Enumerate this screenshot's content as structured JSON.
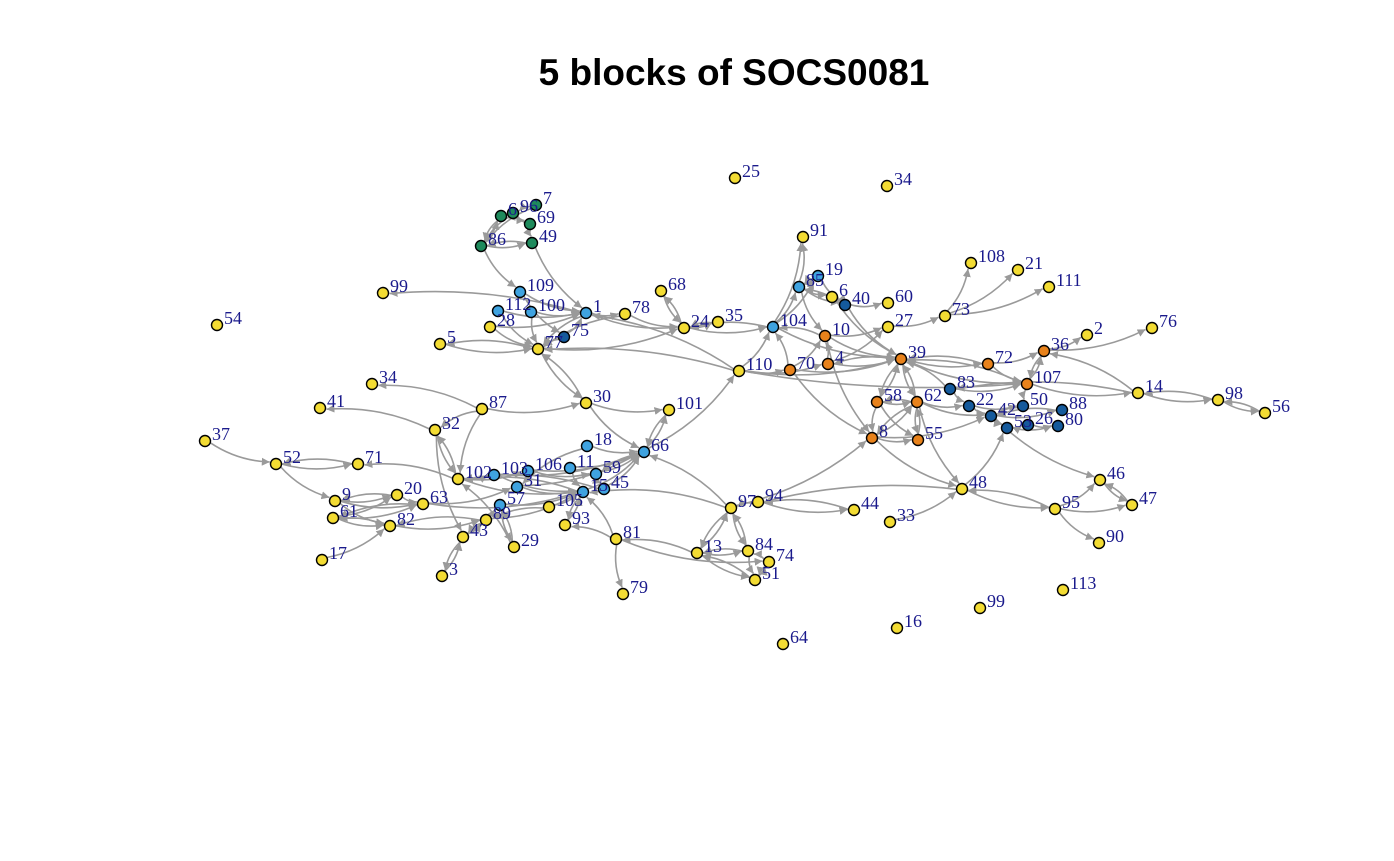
{
  "title": "5 blocks of SOCS0081",
  "colors": {
    "yellow": "#f3dc33",
    "green": "#1e8a5c",
    "lightblue": "#3fa3e0",
    "orange": "#e8821b",
    "darkblue": "#155a9c",
    "edge": "#9a9a9a",
    "label": "#1a1a8c"
  },
  "nodes": [
    {
      "id": "n25",
      "label": "25",
      "color": "yellow"
    },
    {
      "id": "n34a",
      "label": "34",
      "color": "yellow"
    },
    {
      "id": "n7",
      "label": "7",
      "color": "green"
    },
    {
      "id": "n96",
      "label": "96",
      "color": "green"
    },
    {
      "id": "n6g",
      "label": "6",
      "color": "green"
    },
    {
      "id": "n69",
      "label": "69",
      "color": "green"
    },
    {
      "id": "n86",
      "label": "86",
      "color": "green"
    },
    {
      "id": "n49",
      "label": "49",
      "color": "green"
    },
    {
      "id": "n91",
      "label": "91",
      "color": "yellow"
    },
    {
      "id": "n108",
      "label": "108",
      "color": "yellow"
    },
    {
      "id": "n21",
      "label": "21",
      "color": "yellow"
    },
    {
      "id": "n111",
      "label": "111",
      "color": "yellow"
    },
    {
      "id": "n19",
      "label": "19",
      "color": "lightblue"
    },
    {
      "id": "n85",
      "label": "85",
      "color": "lightblue"
    },
    {
      "id": "n6",
      "label": "6",
      "color": "yellow"
    },
    {
      "id": "n40",
      "label": "40",
      "color": "darkblue"
    },
    {
      "id": "n60",
      "label": "60",
      "color": "yellow"
    },
    {
      "id": "n109",
      "label": "109",
      "color": "lightblue"
    },
    {
      "id": "n99a",
      "label": "99",
      "color": "yellow"
    },
    {
      "id": "n68",
      "label": "68",
      "color": "yellow"
    },
    {
      "id": "n54",
      "label": "54",
      "color": "yellow"
    },
    {
      "id": "n112",
      "label": "112",
      "color": "lightblue"
    },
    {
      "id": "n100",
      "label": "100",
      "color": "lightblue"
    },
    {
      "id": "n1",
      "label": "1",
      "color": "lightblue"
    },
    {
      "id": "n78",
      "label": "78",
      "color": "yellow"
    },
    {
      "id": "n35",
      "label": "35",
      "color": "yellow"
    },
    {
      "id": "n24",
      "label": "24",
      "color": "yellow"
    },
    {
      "id": "n104",
      "label": "104",
      "color": "lightblue"
    },
    {
      "id": "n27",
      "label": "27",
      "color": "yellow"
    },
    {
      "id": "n73",
      "label": "73",
      "color": "yellow"
    },
    {
      "id": "n2",
      "label": "2",
      "color": "yellow"
    },
    {
      "id": "n76",
      "label": "76",
      "color": "yellow"
    },
    {
      "id": "n28",
      "label": "28",
      "color": "yellow"
    },
    {
      "id": "n75",
      "label": "75",
      "color": "darkblue"
    },
    {
      "id": "n10",
      "label": "10",
      "color": "orange"
    },
    {
      "id": "n5",
      "label": "5",
      "color": "yellow"
    },
    {
      "id": "n77",
      "label": "77",
      "color": "yellow"
    },
    {
      "id": "n4",
      "label": "4",
      "color": "orange"
    },
    {
      "id": "n39",
      "label": "39",
      "color": "orange"
    },
    {
      "id": "n36",
      "label": "36",
      "color": "orange"
    },
    {
      "id": "n72",
      "label": "72",
      "color": "orange"
    },
    {
      "id": "n70",
      "label": "70",
      "color": "orange"
    },
    {
      "id": "n110",
      "label": "110",
      "color": "yellow"
    },
    {
      "id": "n34b",
      "label": "34",
      "color": "yellow"
    },
    {
      "id": "n83",
      "label": "83",
      "color": "darkblue"
    },
    {
      "id": "n107",
      "label": "107",
      "color": "orange"
    },
    {
      "id": "n14",
      "label": "14",
      "color": "yellow"
    },
    {
      "id": "n98",
      "label": "98",
      "color": "yellow"
    },
    {
      "id": "n56",
      "label": "56",
      "color": "yellow"
    },
    {
      "id": "n87",
      "label": "87",
      "color": "yellow"
    },
    {
      "id": "n41",
      "label": "41",
      "color": "yellow"
    },
    {
      "id": "n30",
      "label": "30",
      "color": "yellow"
    },
    {
      "id": "n101",
      "label": "101",
      "color": "yellow"
    },
    {
      "id": "n58",
      "label": "58",
      "color": "orange"
    },
    {
      "id": "n62",
      "label": "62",
      "color": "orange"
    },
    {
      "id": "n22",
      "label": "22",
      "color": "darkblue"
    },
    {
      "id": "n50",
      "label": "50",
      "color": "darkblue"
    },
    {
      "id": "n88",
      "label": "88",
      "color": "darkblue"
    },
    {
      "id": "n42",
      "label": "42",
      "color": "darkblue"
    },
    {
      "id": "n53",
      "label": "53",
      "color": "darkblue"
    },
    {
      "id": "n26",
      "label": "26",
      "color": "darkblue"
    },
    {
      "id": "n80",
      "label": "80",
      "color": "darkblue"
    },
    {
      "id": "n32",
      "label": "32",
      "color": "yellow"
    },
    {
      "id": "n8",
      "label": "8",
      "color": "orange"
    },
    {
      "id": "n55",
      "label": "55",
      "color": "orange"
    },
    {
      "id": "n37",
      "label": "37",
      "color": "yellow"
    },
    {
      "id": "n18",
      "label": "18",
      "color": "lightblue"
    },
    {
      "id": "n66",
      "label": "66",
      "color": "lightblue"
    },
    {
      "id": "n52",
      "label": "52",
      "color": "yellow"
    },
    {
      "id": "n71",
      "label": "71",
      "color": "yellow"
    },
    {
      "id": "n102",
      "label": "102",
      "color": "yellow"
    },
    {
      "id": "n103",
      "label": "103",
      "color": "lightblue"
    },
    {
      "id": "n106",
      "label": "106",
      "color": "lightblue"
    },
    {
      "id": "n11",
      "label": "11",
      "color": "lightblue"
    },
    {
      "id": "n59",
      "label": "59",
      "color": "lightblue"
    },
    {
      "id": "n31",
      "label": "31",
      "color": "lightblue"
    },
    {
      "id": "n15",
      "label": "15",
      "color": "lightblue"
    },
    {
      "id": "n45",
      "label": "45",
      "color": "lightblue"
    },
    {
      "id": "n46",
      "label": "46",
      "color": "yellow"
    },
    {
      "id": "n48",
      "label": "48",
      "color": "yellow"
    },
    {
      "id": "n9",
      "label": "9",
      "color": "yellow"
    },
    {
      "id": "n20",
      "label": "20",
      "color": "yellow"
    },
    {
      "id": "n63",
      "label": "63",
      "color": "yellow"
    },
    {
      "id": "n57",
      "label": "57",
      "color": "lightblue"
    },
    {
      "id": "n105",
      "label": "105",
      "color": "yellow"
    },
    {
      "id": "n97",
      "label": "97",
      "color": "yellow"
    },
    {
      "id": "n94",
      "label": "94",
      "color": "yellow"
    },
    {
      "id": "n44",
      "label": "44",
      "color": "yellow"
    },
    {
      "id": "n95",
      "label": "95",
      "color": "yellow"
    },
    {
      "id": "n47",
      "label": "47",
      "color": "yellow"
    },
    {
      "id": "n61",
      "label": "61",
      "color": "yellow"
    },
    {
      "id": "n82",
      "label": "82",
      "color": "yellow"
    },
    {
      "id": "n89",
      "label": "89",
      "color": "yellow"
    },
    {
      "id": "n93",
      "label": "93",
      "color": "yellow"
    },
    {
      "id": "n33",
      "label": "33",
      "color": "yellow"
    },
    {
      "id": "n43",
      "label": "43",
      "color": "yellow"
    },
    {
      "id": "n81",
      "label": "81",
      "color": "yellow"
    },
    {
      "id": "n29",
      "label": "29",
      "color": "yellow"
    },
    {
      "id": "n90",
      "label": "90",
      "color": "yellow"
    },
    {
      "id": "n13",
      "label": "13",
      "color": "yellow"
    },
    {
      "id": "n84",
      "label": "84",
      "color": "yellow"
    },
    {
      "id": "n74",
      "label": "74",
      "color": "yellow"
    },
    {
      "id": "n17",
      "label": "17",
      "color": "yellow"
    },
    {
      "id": "n3",
      "label": "3",
      "color": "yellow"
    },
    {
      "id": "n51",
      "label": "51",
      "color": "yellow"
    },
    {
      "id": "n113",
      "label": "113",
      "color": "yellow"
    },
    {
      "id": "n79",
      "label": "79",
      "color": "yellow"
    },
    {
      "id": "n99b",
      "label": "99",
      "color": "yellow"
    },
    {
      "id": "n16",
      "label": "16",
      "color": "yellow"
    },
    {
      "id": "n64",
      "label": "64",
      "color": "yellow"
    }
  ],
  "edges": [
    [
      "n7",
      "n96"
    ],
    [
      "n96",
      "n69"
    ],
    [
      "n69",
      "n49"
    ],
    [
      "n86",
      "n6g"
    ],
    [
      "n6g",
      "n86"
    ],
    [
      "n49",
      "n86"
    ],
    [
      "n86",
      "n49"
    ],
    [
      "n7",
      "n86"
    ],
    [
      "n96",
      "n86"
    ],
    [
      "n69",
      "n6g"
    ],
    [
      "n86",
      "n109"
    ],
    [
      "n49",
      "n1"
    ],
    [
      "n109",
      "n1"
    ],
    [
      "n1",
      "n99a"
    ],
    [
      "n112",
      "n1"
    ],
    [
      "n100",
      "n1"
    ],
    [
      "n28",
      "n1"
    ],
    [
      "n1",
      "n78"
    ],
    [
      "n78",
      "n24"
    ],
    [
      "n24",
      "n68"
    ],
    [
      "n68",
      "n24"
    ],
    [
      "n24",
      "n35"
    ],
    [
      "n35",
      "n24"
    ],
    [
      "n1",
      "n24"
    ],
    [
      "n109",
      "n75"
    ],
    [
      "n112",
      "n77"
    ],
    [
      "n28",
      "n77"
    ],
    [
      "n100",
      "n77"
    ],
    [
      "n75",
      "n77"
    ],
    [
      "n1",
      "n77"
    ],
    [
      "n5",
      "n77"
    ],
    [
      "n77",
      "n5"
    ],
    [
      "n77",
      "n24"
    ],
    [
      "n78",
      "n77"
    ],
    [
      "n75",
      "n1"
    ],
    [
      "n104",
      "n19"
    ],
    [
      "n85",
      "n19"
    ],
    [
      "n19",
      "n85"
    ],
    [
      "n85",
      "n40"
    ],
    [
      "n40",
      "n85"
    ],
    [
      "n85",
      "n6"
    ],
    [
      "n40",
      "n60"
    ],
    [
      "n104",
      "n85"
    ],
    [
      "n104",
      "n91"
    ],
    [
      "n85",
      "n91"
    ],
    [
      "n40",
      "n6"
    ],
    [
      "n104",
      "n24"
    ],
    [
      "n24",
      "n104"
    ],
    [
      "n10",
      "n104"
    ],
    [
      "n70",
      "n104"
    ],
    [
      "n70",
      "n10"
    ],
    [
      "n10",
      "n27"
    ],
    [
      "n4",
      "n10"
    ],
    [
      "n4",
      "n27"
    ],
    [
      "n27",
      "n73"
    ],
    [
      "n73",
      "n108"
    ],
    [
      "n73",
      "n21"
    ],
    [
      "n73",
      "n111"
    ],
    [
      "n10",
      "n39"
    ],
    [
      "n4",
      "n39"
    ],
    [
      "n39",
      "n4"
    ],
    [
      "n70",
      "n39"
    ],
    [
      "n39",
      "n72"
    ],
    [
      "n72",
      "n39"
    ],
    [
      "n39",
      "n107"
    ],
    [
      "n36",
      "n107"
    ],
    [
      "n107",
      "n36"
    ],
    [
      "n72",
      "n36"
    ],
    [
      "n36",
      "n2"
    ],
    [
      "n36",
      "n76"
    ],
    [
      "n72",
      "n107"
    ],
    [
      "n107",
      "n39"
    ],
    [
      "n39",
      "n58"
    ],
    [
      "n58",
      "n39"
    ],
    [
      "n39",
      "n62"
    ],
    [
      "n62",
      "n39"
    ],
    [
      "n58",
      "n62"
    ],
    [
      "n62",
      "n58"
    ],
    [
      "n62",
      "n55"
    ],
    [
      "n55",
      "n62"
    ],
    [
      "n58",
      "n8"
    ],
    [
      "n8",
      "n62"
    ],
    [
      "n8",
      "n55"
    ],
    [
      "n62",
      "n8"
    ],
    [
      "n58",
      "n55"
    ],
    [
      "n83",
      "n107"
    ],
    [
      "n83",
      "n22"
    ],
    [
      "n22",
      "n42"
    ],
    [
      "n42",
      "n53"
    ],
    [
      "n53",
      "n26"
    ],
    [
      "n26",
      "n80"
    ],
    [
      "n50",
      "n42"
    ],
    [
      "n88",
      "n42"
    ],
    [
      "n42",
      "n88"
    ],
    [
      "n22",
      "n50"
    ],
    [
      "n53",
      "n80"
    ],
    [
      "n83",
      "n39"
    ],
    [
      "n62",
      "n22"
    ],
    [
      "n8",
      "n42"
    ],
    [
      "n107",
      "n50"
    ],
    [
      "n62",
      "n42"
    ],
    [
      "n107",
      "n14"
    ],
    [
      "n14",
      "n98"
    ],
    [
      "n98",
      "n14"
    ],
    [
      "n98",
      "n56"
    ],
    [
      "n56",
      "n98"
    ],
    [
      "n14",
      "n83"
    ],
    [
      "n14",
      "n36"
    ],
    [
      "n110",
      "n77"
    ],
    [
      "n110",
      "n39"
    ],
    [
      "n110",
      "n1"
    ],
    [
      "n110",
      "n4"
    ],
    [
      "n110",
      "n70"
    ],
    [
      "n110",
      "n104"
    ],
    [
      "n110",
      "n107"
    ],
    [
      "n70",
      "n8"
    ],
    [
      "n10",
      "n8"
    ],
    [
      "n40",
      "n39"
    ],
    [
      "n6",
      "n39"
    ],
    [
      "n104",
      "n39"
    ],
    [
      "n85",
      "n10"
    ],
    [
      "n19",
      "n40"
    ],
    [
      "n87",
      "n34b"
    ],
    [
      "n87",
      "n30"
    ],
    [
      "n32",
      "n41"
    ],
    [
      "n87",
      "n32"
    ],
    [
      "n87",
      "n102"
    ],
    [
      "n30",
      "n101"
    ],
    [
      "n30",
      "n66"
    ],
    [
      "n101",
      "n66"
    ],
    [
      "n66",
      "n101"
    ],
    [
      "n77",
      "n30"
    ],
    [
      "n30",
      "n77"
    ],
    [
      "n66",
      "n110"
    ],
    [
      "n18",
      "n66"
    ],
    [
      "n11",
      "n66"
    ],
    [
      "n59",
      "n66"
    ],
    [
      "n15",
      "n66"
    ],
    [
      "n45",
      "n66"
    ],
    [
      "n103",
      "n66"
    ],
    [
      "n106",
      "n66"
    ],
    [
      "n31",
      "n66"
    ],
    [
      "n66",
      "n59"
    ],
    [
      "n18",
      "n31"
    ],
    [
      "n37",
      "n52"
    ],
    [
      "n52",
      "n71"
    ],
    [
      "n71",
      "n52"
    ],
    [
      "n52",
      "n9"
    ],
    [
      "n102",
      "n71"
    ],
    [
      "n102",
      "n106"
    ],
    [
      "n102",
      "n15"
    ],
    [
      "n103",
      "n15"
    ],
    [
      "n106",
      "n59"
    ],
    [
      "n11",
      "n15"
    ],
    [
      "n59",
      "n45"
    ],
    [
      "n31",
      "n15"
    ],
    [
      "n57",
      "n15"
    ],
    [
      "n105",
      "n15"
    ],
    [
      "n89",
      "n15"
    ],
    [
      "n102",
      "n103"
    ],
    [
      "n15",
      "n102"
    ],
    [
      "n45",
      "n102"
    ],
    [
      "n9",
      "n20"
    ],
    [
      "n20",
      "n9"
    ],
    [
      "n9",
      "n63"
    ],
    [
      "n61",
      "n63"
    ],
    [
      "n63",
      "n61"
    ],
    [
      "n61",
      "n82"
    ],
    [
      "n82",
      "n61"
    ],
    [
      "n82",
      "n89"
    ],
    [
      "n89",
      "n82"
    ],
    [
      "n20",
      "n63"
    ],
    [
      "n63",
      "n15"
    ],
    [
      "n61",
      "n20"
    ],
    [
      "n17",
      "n82"
    ],
    [
      "n9",
      "n82"
    ],
    [
      "n63",
      "n31"
    ],
    [
      "n43",
      "n89"
    ],
    [
      "n89",
      "n43"
    ],
    [
      "n3",
      "n43"
    ],
    [
      "n43",
      "n3"
    ],
    [
      "n43",
      "n57"
    ],
    [
      "n29",
      "n57"
    ],
    [
      "n57",
      "n29"
    ],
    [
      "n105",
      "n89"
    ],
    [
      "n93",
      "n15"
    ],
    [
      "n15",
      "n93"
    ],
    [
      "n81",
      "n93"
    ],
    [
      "n81",
      "n79"
    ],
    [
      "n81",
      "n15"
    ],
    [
      "n32",
      "n102"
    ],
    [
      "n102",
      "n32"
    ],
    [
      "n32",
      "n43"
    ],
    [
      "n29",
      "n102"
    ],
    [
      "n97",
      "n15"
    ],
    [
      "n97",
      "n66"
    ],
    [
      "n94",
      "n44"
    ],
    [
      "n44",
      "n94"
    ],
    [
      "n33",
      "n48"
    ],
    [
      "n97",
      "n8"
    ],
    [
      "n48",
      "n94"
    ],
    [
      "n94",
      "n97"
    ],
    [
      "n13",
      "n84"
    ],
    [
      "n84",
      "n13"
    ],
    [
      "n13",
      "n51"
    ],
    [
      "n51",
      "n13"
    ],
    [
      "n84",
      "n51"
    ],
    [
      "n74",
      "n51"
    ],
    [
      "n51",
      "n74"
    ],
    [
      "n97",
      "n13"
    ],
    [
      "n97",
      "n84"
    ],
    [
      "n84",
      "n97"
    ],
    [
      "n13",
      "n97"
    ],
    [
      "n74",
      "n84"
    ],
    [
      "n81",
      "n74"
    ],
    [
      "n13",
      "n81"
    ],
    [
      "n48",
      "n53"
    ],
    [
      "n48",
      "n95"
    ],
    [
      "n95",
      "n48"
    ],
    [
      "n95",
      "n46"
    ],
    [
      "n46",
      "n47"
    ],
    [
      "n47",
      "n46"
    ],
    [
      "n95",
      "n47"
    ],
    [
      "n95",
      "n90"
    ],
    [
      "n8",
      "n48"
    ],
    [
      "n42",
      "n46"
    ],
    [
      "n62",
      "n48"
    ]
  ]
}
